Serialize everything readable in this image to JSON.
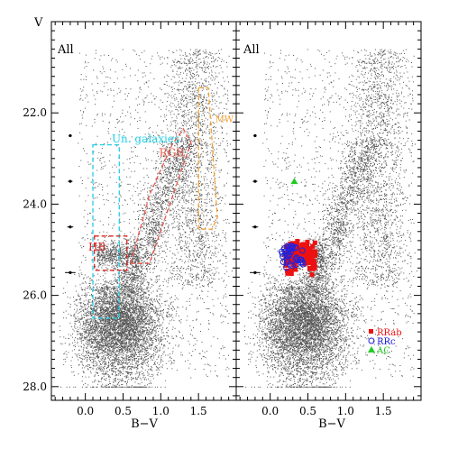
{
  "chart_data": [
    {
      "type": "scatter",
      "panel_title": "All",
      "xlabel": "B−V",
      "ylabel": "V",
      "xlim": [
        -0.45,
        2.0
      ],
      "ylim": [
        28.3,
        20.0
      ],
      "y_inverted": true,
      "x_ticks": [
        0.0,
        0.5,
        1.0,
        1.5
      ],
      "x_tick_labels": [
        "0.0",
        "0.5",
        "1.0",
        "1.5"
      ],
      "y_ticks": [
        22.0,
        24.0,
        26.0,
        28.0
      ],
      "y_tick_labels": [
        "22.0",
        "24.0",
        "26.0",
        "28.0"
      ],
      "points_color": "#555555",
      "error_bars": [
        {
          "x": -0.2,
          "y": 22.5,
          "xerr": 0.02
        },
        {
          "x": -0.2,
          "y": 23.5,
          "xerr": 0.03
        },
        {
          "x": -0.2,
          "y": 24.5,
          "xerr": 0.04
        },
        {
          "x": -0.2,
          "y": 25.5,
          "xerr": 0.07
        }
      ],
      "regions": [
        {
          "name": "Un. galaxies",
          "color": "#22d0e6",
          "label_at": [
            0.35,
            22.65
          ],
          "polygon": [
            [
              0.1,
              22.7
            ],
            [
              0.45,
              22.7
            ],
            [
              0.45,
              26.5
            ],
            [
              0.1,
              26.5
            ]
          ]
        },
        {
          "name": "RGB",
          "color": "#ec5a4e",
          "label_at": [
            0.98,
            22.95
          ],
          "polygon": [
            [
              0.6,
              25.3
            ],
            [
              0.85,
              25.3
            ],
            [
              1.1,
              24.1
            ],
            [
              1.4,
              22.65
            ],
            [
              1.3,
              22.35
            ],
            [
              1.15,
              22.7
            ],
            [
              0.85,
              23.8
            ]
          ]
        },
        {
          "name": "HB",
          "color": "#dd2222",
          "label_at": [
            0.04,
            25.02
          ],
          "polygon": [
            [
              0.12,
              24.7
            ],
            [
              0.55,
              24.7
            ],
            [
              0.55,
              25.45
            ],
            [
              0.12,
              25.45
            ]
          ]
        },
        {
          "name": "MW",
          "color": "#f0a030",
          "label_at": [
            1.72,
            22.2
          ],
          "polygon": [
            [
              1.5,
              21.45
            ],
            [
              1.63,
              21.45
            ],
            [
              1.75,
              24.3
            ],
            [
              1.68,
              24.55
            ],
            [
              1.5,
              24.55
            ]
          ]
        }
      ]
    },
    {
      "type": "scatter",
      "panel_title": "All",
      "xlabel": "B−V",
      "xlim": [
        -0.45,
        2.0
      ],
      "ylim": [
        28.3,
        20.0
      ],
      "y_inverted": true,
      "x_ticks": [
        0.0,
        0.5,
        1.0,
        1.5
      ],
      "x_tick_labels": [
        "0.0",
        "0.5",
        "1.0",
        "1.5"
      ],
      "points_color": "#555555",
      "error_bars": [
        {
          "x": -0.2,
          "y": 22.5,
          "xerr": 0.02
        },
        {
          "x": -0.2,
          "y": 23.5,
          "xerr": 0.03
        },
        {
          "x": -0.2,
          "y": 24.5,
          "xerr": 0.04
        },
        {
          "x": -0.2,
          "y": 25.5,
          "xerr": 0.07
        }
      ],
      "series": [
        {
          "name": "RRab",
          "marker": "filled-square",
          "color": "#ee1111",
          "x_range": [
            0.2,
            0.6
          ],
          "y_range": [
            24.7,
            25.6
          ],
          "approx_count": 110
        },
        {
          "name": "RRc",
          "marker": "open-circle",
          "color": "#2222dd",
          "x_range": [
            0.15,
            0.45
          ],
          "y_range": [
            24.9,
            25.4
          ],
          "approx_count": 40
        },
        {
          "name": "AC",
          "marker": "filled-triangle",
          "color": "#22cc22",
          "x": [
            0.32
          ],
          "y": [
            23.5
          ]
        }
      ]
    }
  ]
}
